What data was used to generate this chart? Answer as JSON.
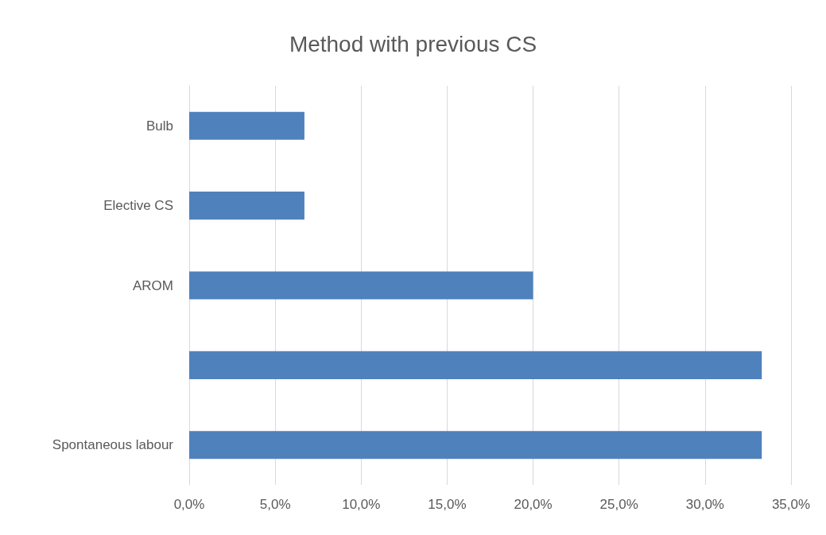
{
  "chart_data": {
    "type": "bar",
    "orientation": "horizontal",
    "title": "Method with previous CS",
    "categories": [
      "Bulb",
      "Elective CS",
      "AROM",
      null,
      "Spontaneous labour"
    ],
    "values": [
      6.7,
      6.7,
      20.0,
      33.3,
      33.3
    ],
    "color": "#4f81bd",
    "xlim": [
      0,
      35
    ],
    "xticks": [
      {
        "value": 0,
        "label": "0,0%"
      },
      {
        "value": 5,
        "label": "5,0%"
      },
      {
        "value": 10,
        "label": "10,0%"
      },
      {
        "value": 15,
        "label": "15,0%"
      },
      {
        "value": 20,
        "label": "20,0%"
      },
      {
        "value": 25,
        "label": "25,0%"
      },
      {
        "value": 30,
        "label": "30,0%"
      },
      {
        "value": 35,
        "label": "35,0%"
      }
    ],
    "grid": "x"
  }
}
